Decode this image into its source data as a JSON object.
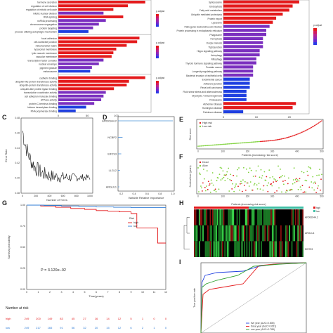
{
  "panels": {
    "C": "C",
    "D": "D",
    "E": "E",
    "F": "F",
    "G": "G",
    "H": "H",
    "I": "I"
  },
  "go_bar": {
    "x_ticks": [
      "0",
      "50",
      "100"
    ],
    "terms": [
      {
        "label": "hormone secretion",
        "value": 150
      },
      {
        "label": "regulation of cell division",
        "value": 120
      },
      {
        "label": "regulation of mitotic cell cycle",
        "value": 95
      },
      {
        "label": "mitotic nuclear division",
        "value": 78
      },
      {
        "label": "RNA splicing",
        "value": 112
      },
      {
        "label": "ncRNA processing",
        "value": 82
      },
      {
        "label": "chromosome segregation",
        "value": 70
      },
      {
        "label": "protein targeting",
        "value": 60
      },
      {
        "label": "process utilizing autophagic mechanism",
        "value": 52
      },
      {
        "label": "focal adhesion",
        "value": 140
      },
      {
        "label": "cell-substrate junction",
        "value": 136
      },
      {
        "label": "mitochondrial matrix",
        "value": 118
      },
      {
        "label": "lysosomal membrane",
        "value": 100
      },
      {
        "label": "lytic vacuole membrane",
        "value": 95
      },
      {
        "label": "vacuolar membrane",
        "value": 92
      },
      {
        "label": "transcription factor complex",
        "value": 78
      },
      {
        "label": "nuclear envelope",
        "value": 70
      },
      {
        "label": "pigment granule",
        "value": 58
      },
      {
        "label": "melanosome",
        "value": 55
      },
      {
        "label": "cadherin binding",
        "value": 150
      },
      {
        "label": "ubiquitin-like protein transferase activity",
        "value": 122
      },
      {
        "label": "ubiquitin-protein transferase activity",
        "value": 118
      },
      {
        "label": "ubiquitin-like protein ligase binding",
        "value": 96
      },
      {
        "label": "transcription coactivator activity",
        "value": 82
      },
      {
        "label": "cell adhesion molecule binding",
        "value": 78
      },
      {
        "label": "ATPase activity",
        "value": 74
      },
      {
        "label": "protein C-terminus binding",
        "value": 62
      },
      {
        "label": "histone deacetylase binding",
        "value": 48
      },
      {
        "label": "RNA polymerase binding",
        "value": 30
      }
    ],
    "legend_title": "p.adjust"
  },
  "kegg_bar": {
    "x_ticks": [
      "0",
      "10",
      "20"
    ],
    "terms": [
      {
        "label": "Spliceosome",
        "value": 23
      },
      {
        "label": "Endocytosis",
        "value": 21
      },
      {
        "label": "Fatty acid metabolism",
        "value": 20
      },
      {
        "label": "Ubiquitin mediated proteolysis",
        "value": 18
      },
      {
        "label": "Protein export",
        "value": 16
      },
      {
        "label": "Lysosome",
        "value": 15
      },
      {
        "label": "Pathogenic Escherichia coli infection",
        "value": 14
      },
      {
        "label": "Protein processing in endoplasmic reticulum",
        "value": 13
      },
      {
        "label": "Phagosome",
        "value": 13
      },
      {
        "label": "Ferroptosis",
        "value": 12
      },
      {
        "label": "Oocyte meiosis",
        "value": 12
      },
      {
        "label": "Tight junction",
        "value": 12
      },
      {
        "label": "Hippo signaling pathway",
        "value": 11
      },
      {
        "label": "Autophagy",
        "value": 11
      },
      {
        "label": "Mitophagy",
        "value": 10
      },
      {
        "label": "Thyroid hormone signaling pathway",
        "value": 10
      },
      {
        "label": "Prostate cancer",
        "value": 9
      },
      {
        "label": "Longevity regulating pathway",
        "value": 9
      },
      {
        "label": "Bacterial invasion of epithelial cells",
        "value": 9
      },
      {
        "label": "Endometrial cancer",
        "value": 8
      },
      {
        "label": "Adherens junction",
        "value": 8
      },
      {
        "label": "Renal cell carcinoma",
        "value": 8
      },
      {
        "label": "Fluid shear stress and atherosclerosis",
        "value": 7
      },
      {
        "label": "Glycolysis / Gluconeogenesis",
        "value": 7
      },
      {
        "label": "Proteasome",
        "value": 7
      },
      {
        "label": "Alzheimer disease",
        "value": 22
      },
      {
        "label": "Huntington disease",
        "value": 21
      },
      {
        "label": "Parkinson disease",
        "value": 6
      }
    ],
    "legend_title": "p.adjust"
  },
  "panel_c": {
    "ylabel": "Error Rate",
    "xlabel": "Number of Trees",
    "x_ticks": [
      "0",
      "200",
      "400",
      "600",
      "800",
      "1000"
    ],
    "y_ticks": [
      "0.38",
      "0.40",
      "0.42",
      "0.44",
      "0.46",
      "0.48"
    ]
  },
  "panel_d": {
    "xlabel": "Variable Relative Importance",
    "x_ticks": [
      "0.2",
      "0.4",
      "0.6",
      "0.8",
      "1.0"
    ],
    "genes": [
      {
        "name": "AP000944.2",
        "importance": 1.0
      },
      {
        "name": "NCBP2",
        "importance": 0.22
      },
      {
        "name": "EIF2S3",
        "importance": 0.2
      },
      {
        "name": "LLGL2",
        "importance": 0.18
      },
      {
        "name": "ARGLU1",
        "importance": 0.17
      }
    ]
  },
  "panel_e": {
    "legend": [
      "High risk",
      "Low risk"
    ],
    "ylabel": "Risk score",
    "xlabel": "Patients (increasing risk score)",
    "x_ticks": [
      "0",
      "100",
      "200",
      "300",
      "400",
      "500"
    ]
  },
  "panel_f": {
    "legend": [
      "Dead",
      "Alive"
    ],
    "ylabel": "Survival time (years)",
    "x_ticks": [
      "0",
      "100",
      "200",
      "300",
      "400",
      "500"
    ]
  },
  "panel_g": {
    "legend_title": "Risk",
    "legend": [
      "high",
      "low"
    ],
    "ylabel": "Survival probability",
    "xlabel": "Time(years)",
    "y_ticks": [
      "0.00",
      "0.25",
      "0.50",
      "0.75",
      "1.00"
    ],
    "x_ticks": [
      "0",
      "1",
      "2",
      "3",
      "4",
      "5",
      "6",
      "7",
      "8",
      "9",
      "10",
      "11",
      "12"
    ],
    "pvalue": "P = 3.120e−02",
    "risk_title": "Number at risk",
    "risk_rows": [
      {
        "label": "high",
        "values": [
          "249",
          "200",
          "149",
          "83",
          "45",
          "27",
          "16",
          "14",
          "12",
          "5",
          "1",
          "0",
          "0"
        ]
      },
      {
        "label": "low",
        "values": [
          "249",
          "217",
          "165",
          "91",
          "56",
          "32",
          "20",
          "15",
          "12",
          "6",
          "2",
          "1",
          "0"
        ]
      }
    ]
  },
  "panel_h": {
    "title": "Patients (increasing risk score)",
    "legend": [
      "high",
      "low"
    ],
    "genes": [
      "AP000944.2",
      "ARGLU1",
      "EIF2S3"
    ]
  },
  "panel_i": {
    "ylabel": "True positive rate",
    "legend": [
      "five year (AUC=0.808)",
      "three year (AUC=0.651)",
      "one year (AUC=0.788)"
    ]
  },
  "colors": {
    "bar_red": "#e41a1c",
    "bar_purple": "#7b2fbf",
    "bar_blue": "#1f3fe0",
    "high": "#e41a1c",
    "low": "#2e7bd6",
    "dead": "#e41a1c",
    "alive": "#7fd23c"
  }
}
